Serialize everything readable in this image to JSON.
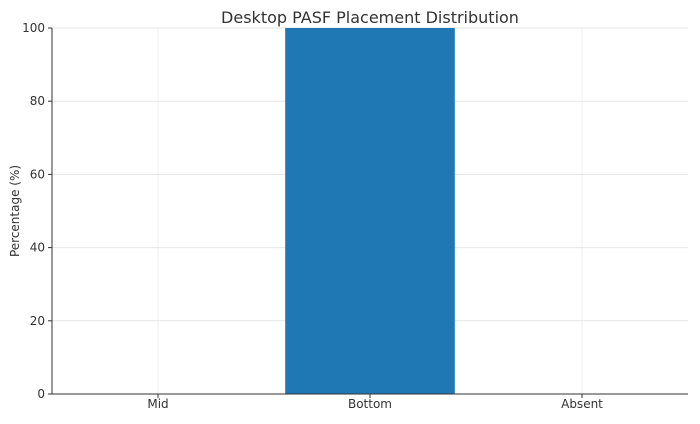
{
  "chart_data": {
    "type": "bar",
    "title": "Desktop PASF Placement Distribution",
    "xlabel": "",
    "ylabel": "Percentage (%)",
    "categories": [
      "Mid",
      "Bottom",
      "Absent"
    ],
    "values": [
      0,
      100,
      0
    ],
    "ylim": [
      0,
      100
    ],
    "yticks": [
      0,
      20,
      40,
      60,
      80,
      100
    ],
    "grid": true,
    "bar_color": "#1f77b4"
  }
}
